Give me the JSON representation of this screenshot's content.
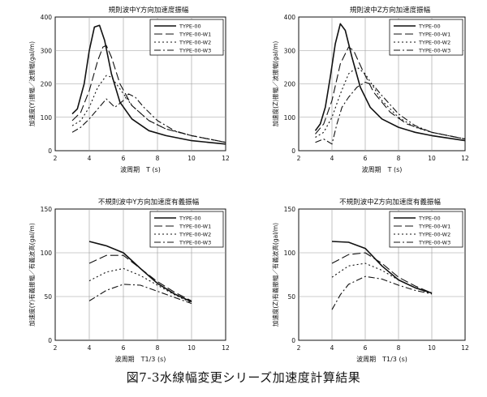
{
  "figure": {
    "caption": "図7-3水線幅変更シリーズ加速度計算結果"
  },
  "chart_data": [
    {
      "type": "line",
      "title": "規則波中Y方向加速度振幅",
      "xlabel": "波周期　T (s)",
      "ylabel": "加速度(Y)振幅／波振幅(gal/m)",
      "xlim": [
        2,
        12
      ],
      "ylim": [
        0,
        400
      ],
      "xticks": [
        "2",
        "4",
        "6",
        "8",
        "10",
        "12"
      ],
      "yticks": [
        "0",
        "100",
        "200",
        "300",
        "400"
      ],
      "grid": true,
      "legend_position": "top-right",
      "series": [
        {
          "name": "TYPE-00",
          "dash": "",
          "x": [
            3.0,
            3.3,
            3.7,
            4.0,
            4.3,
            4.6,
            4.9,
            5.3,
            5.8,
            6.5,
            7.5,
            8.5,
            10.0,
            12.0
          ],
          "y": [
            110,
            125,
            200,
            300,
            370,
            375,
            330,
            230,
            145,
            95,
            60,
            45,
            30,
            20
          ]
        },
        {
          "name": "TYPE-00-W1",
          "dash": "10,4",
          "x": [
            3.0,
            3.5,
            4.0,
            4.5,
            4.8,
            5.0,
            5.3,
            5.8,
            6.5,
            7.5,
            8.5,
            10.0,
            12.0
          ],
          "y": [
            90,
            115,
            180,
            270,
            310,
            315,
            280,
            200,
            135,
            90,
            65,
            45,
            25
          ]
        },
        {
          "name": "TYPE-00-W2",
          "dash": "2,3",
          "x": [
            3.0,
            3.5,
            4.0,
            4.5,
            5.0,
            5.3,
            5.8,
            6.5,
            7.5,
            8.5,
            10.0,
            12.0
          ],
          "y": [
            75,
            90,
            130,
            190,
            225,
            220,
            185,
            135,
            90,
            65,
            45,
            25
          ]
        },
        {
          "name": "TYPE-00-W3",
          "dash": "8,3,2,3",
          "x": [
            3.0,
            3.5,
            4.0,
            4.5,
            5.0,
            5.5,
            6.0,
            6.3,
            6.7,
            7.2,
            8.0,
            9.0,
            10.0,
            12.0
          ],
          "y": [
            55,
            70,
            95,
            125,
            155,
            130,
            150,
            170,
            160,
            130,
            90,
            60,
            45,
            25
          ]
        }
      ]
    },
    {
      "type": "line",
      "title": "規則波中Z方向加速度振幅",
      "xlabel": "波周期　T (s)",
      "ylabel": "加速度(Z)振幅／波振幅(gal/m)",
      "xlim": [
        2,
        12
      ],
      "ylim": [
        0,
        400
      ],
      "xticks": [
        "2",
        "4",
        "6",
        "8",
        "10",
        "12"
      ],
      "yticks": [
        "0",
        "100",
        "200",
        "300",
        "400"
      ],
      "grid": true,
      "legend_position": "top-right",
      "series": [
        {
          "name": "TYPE-00",
          "dash": "",
          "x": [
            3.0,
            3.3,
            3.6,
            3.9,
            4.2,
            4.5,
            4.8,
            5.2,
            5.7,
            6.3,
            7.0,
            8.0,
            9.0,
            10.0,
            12.0
          ],
          "y": [
            60,
            80,
            130,
            220,
            320,
            380,
            360,
            280,
            190,
            130,
            95,
            70,
            55,
            45,
            30
          ]
        },
        {
          "name": "TYPE-00-W1",
          "dash": "10,4",
          "x": [
            3.0,
            3.5,
            4.0,
            4.5,
            5.0,
            5.3,
            5.8,
            6.5,
            7.5,
            8.5,
            10.0,
            12.0
          ],
          "y": [
            50,
            80,
            150,
            260,
            310,
            300,
            245,
            175,
            115,
            80,
            55,
            35
          ]
        },
        {
          "name": "TYPE-00-W2",
          "dash": "2,3",
          "x": [
            3.0,
            3.5,
            4.0,
            4.5,
            5.0,
            5.5,
            6.0,
            6.5,
            7.0,
            8.0,
            9.0,
            10.0,
            12.0
          ],
          "y": [
            40,
            55,
            100,
            170,
            230,
            250,
            230,
            190,
            150,
            100,
            70,
            55,
            35
          ]
        },
        {
          "name": "TYPE-00-W3",
          "dash": "8,3,2,3",
          "x": [
            3.0,
            3.5,
            4.0,
            4.3,
            4.6,
            5.0,
            5.5,
            6.0,
            6.5,
            7.0,
            8.0,
            9.0,
            10.0,
            12.0
          ],
          "y": [
            25,
            35,
            20,
            80,
            130,
            160,
            190,
            205,
            195,
            165,
            110,
            75,
            55,
            35
          ]
        }
      ]
    },
    {
      "type": "line",
      "title": "不規則波中Y方向加速度有義振幅",
      "xlabel": "波周期　T1/3 (s)",
      "ylabel": "加速度(Y)有義振幅／有義波高(gal/m)",
      "xlim": [
        2,
        12
      ],
      "ylim": [
        0,
        150
      ],
      "xticks": [
        "2",
        "4",
        "6",
        "8",
        "10",
        "12"
      ],
      "yticks": [
        "0",
        "50",
        "100",
        "150"
      ],
      "grid": true,
      "legend_position": "top-right",
      "series": [
        {
          "name": "TYPE-00",
          "dash": "",
          "x": [
            4,
            5,
            6,
            7,
            8,
            9,
            10
          ],
          "y": [
            113,
            108,
            100,
            82,
            65,
            53,
            44
          ]
        },
        {
          "name": "TYPE-00-W1",
          "dash": "10,4",
          "x": [
            4,
            5,
            6,
            7,
            8,
            9,
            10
          ],
          "y": [
            88,
            97,
            97,
            82,
            67,
            55,
            45
          ]
        },
        {
          "name": "TYPE-00-W2",
          "dash": "2,3",
          "x": [
            4,
            5,
            6,
            7,
            8,
            9,
            10
          ],
          "y": [
            68,
            78,
            82,
            74,
            63,
            52,
            43
          ]
        },
        {
          "name": "TYPE-00-W3",
          "dash": "8,3,2,3",
          "x": [
            4,
            5,
            6,
            7,
            8,
            9,
            10
          ],
          "y": [
            45,
            57,
            64,
            63,
            56,
            49,
            42
          ]
        }
      ]
    },
    {
      "type": "line",
      "title": "不規則波中Z方向加速度有義振幅",
      "xlabel": "波周期　T1/3 (s)",
      "ylabel": "加速度(Z)有義振幅／有義波高(gal/m)",
      "xlim": [
        2,
        12
      ],
      "ylim": [
        0,
        150
      ],
      "xticks": [
        "2",
        "4",
        "6",
        "8",
        "10",
        "12"
      ],
      "yticks": [
        "0",
        "50",
        "100",
        "150"
      ],
      "grid": true,
      "legend_position": "top-right",
      "series": [
        {
          "name": "TYPE-00",
          "dash": "",
          "x": [
            4,
            5,
            6,
            7,
            8,
            9,
            10
          ],
          "y": [
            113,
            112,
            105,
            85,
            69,
            60,
            54
          ]
        },
        {
          "name": "TYPE-00-W1",
          "dash": "10,4",
          "x": [
            4,
            5,
            6,
            7,
            8,
            9,
            10
          ],
          "y": [
            88,
            98,
            100,
            88,
            72,
            62,
            54
          ]
        },
        {
          "name": "TYPE-00-W2",
          "dash": "2,3",
          "x": [
            4,
            5,
            6,
            7,
            8,
            9,
            10
          ],
          "y": [
            72,
            85,
            88,
            80,
            69,
            60,
            53
          ]
        },
        {
          "name": "TYPE-00-W3",
          "dash": "8,3,2,3",
          "x": [
            4,
            4.5,
            5,
            6,
            7,
            8,
            9,
            10
          ],
          "y": [
            35,
            52,
            64,
            73,
            70,
            63,
            57,
            53
          ]
        }
      ]
    }
  ]
}
